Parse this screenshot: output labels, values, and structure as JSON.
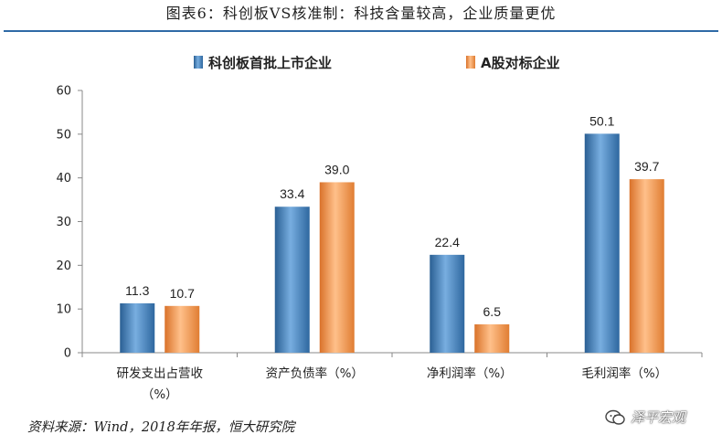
{
  "header": {
    "title": "图表6：科创板VS核准制：科技含量较高，企业质量更优"
  },
  "footer": {
    "source": "资料来源：Wind，2018年年报，恒大研究院",
    "watermark": "泽平宏观"
  },
  "colors": {
    "series_a": "#3e7fbf",
    "series_b": "#f0913f",
    "rule": "#2e6aa6"
  },
  "chart_data": {
    "type": "bar",
    "title": "",
    "xlabel": "",
    "ylabel": "",
    "ylim": [
      0,
      60
    ],
    "yticks": [
      0,
      10,
      20,
      30,
      40,
      50,
      60
    ],
    "grid": false,
    "legend_position": "top-center",
    "categories": [
      [
        "研发支出占营收",
        "（%）"
      ],
      [
        "资产负债率（%）"
      ],
      [
        "净利润率（%）"
      ],
      [
        "毛利润率（%）"
      ]
    ],
    "series": [
      {
        "name": "科创板首批上市企业",
        "values": [
          11.3,
          33.4,
          22.4,
          50.1
        ],
        "labels": [
          "11.3",
          "33.4",
          "22.4",
          "50.1"
        ]
      },
      {
        "name": "A股对标企业",
        "values": [
          10.7,
          39.0,
          6.5,
          39.7
        ],
        "labels": [
          "10.7",
          "39.0",
          "6.5",
          "39.7"
        ]
      }
    ]
  }
}
